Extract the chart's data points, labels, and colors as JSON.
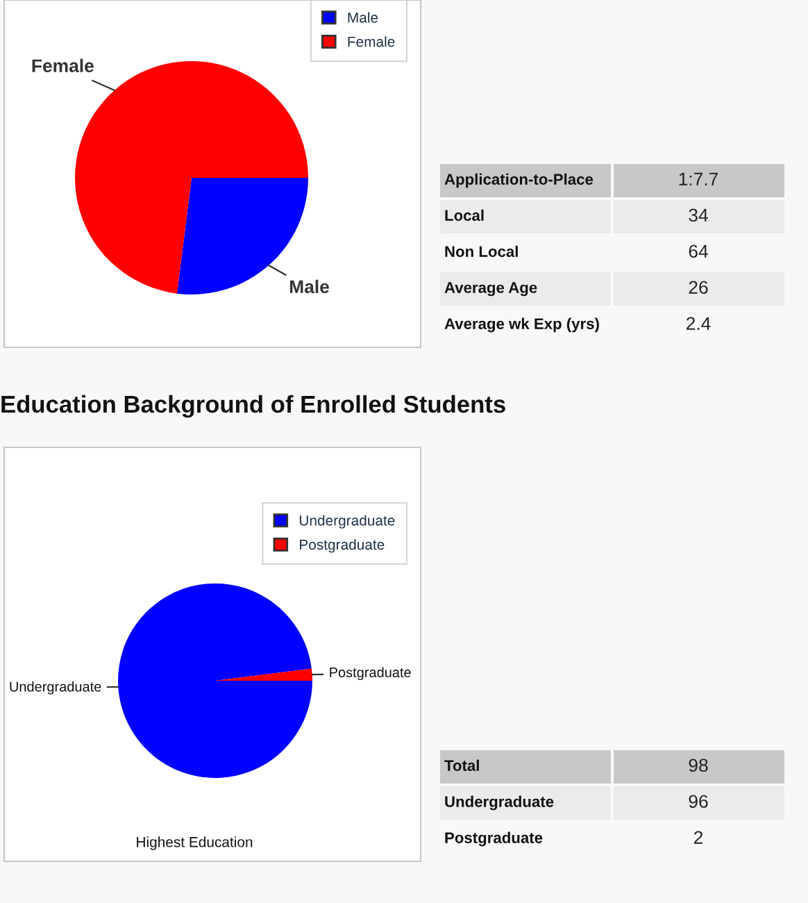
{
  "chart_data": [
    {
      "type": "pie",
      "categories": [
        "Male",
        "Female"
      ],
      "values": [
        27,
        73
      ],
      "colors": [
        "#0000ff",
        "#ff0000"
      ],
      "legend": "top right"
    },
    {
      "type": "other",
      "categories": [
        "Application-to-Place",
        "Local",
        "Non Local",
        "Average Age",
        "Average wk Exp (yrs)"
      ],
      "value_labels": [
        "1:7.7",
        "34",
        "64",
        "26",
        "2.4"
      ]
    },
    {
      "type": "pie",
      "title": "Education Background of Enrolled Students",
      "xlabel": "Highest Education",
      "categories": [
        "Undergraduate",
        "Postgraduate"
      ],
      "values": [
        98,
        2
      ],
      "colors": [
        "#0000ff",
        "#ff0000"
      ],
      "legend": "top right"
    },
    {
      "type": "other",
      "categories": [
        "Total",
        "Undergraduate",
        "Postgraduate"
      ],
      "value_labels": [
        "98",
        "96",
        "2"
      ]
    }
  ]
}
